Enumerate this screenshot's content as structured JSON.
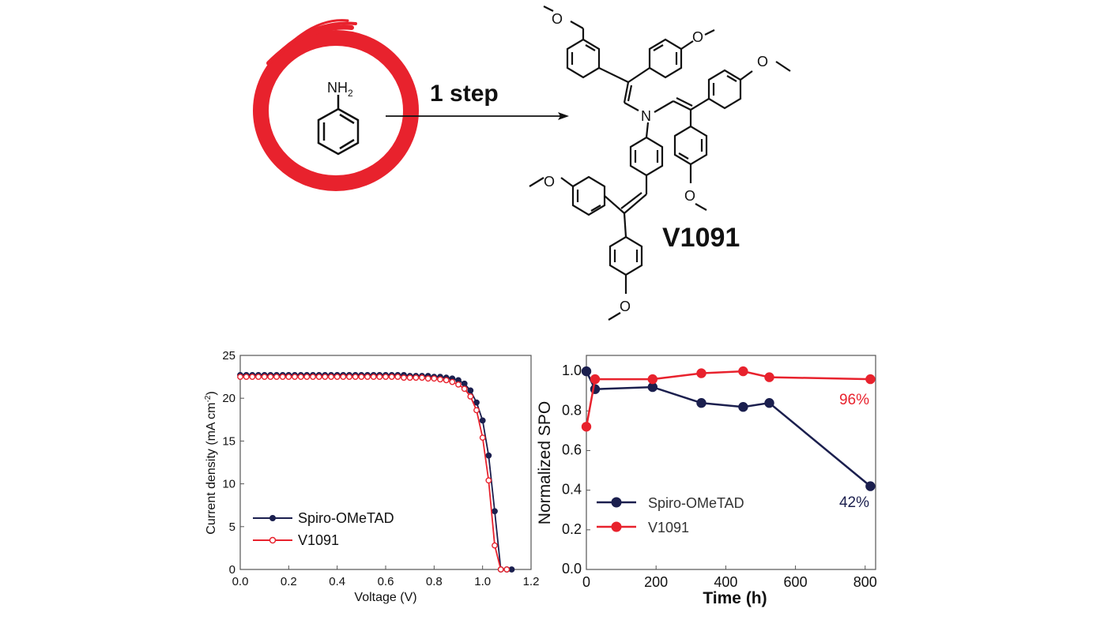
{
  "scheme": {
    "reactant_label": "NH",
    "reactant_subscript": "2",
    "step_label": "1 step",
    "product_name": "V1091",
    "atom_n": "N",
    "atom_o": "O",
    "colors": {
      "circle": "#e8222d",
      "ink": "#111111"
    }
  },
  "chart_data": [
    {
      "type": "line",
      "xlabel": "Voltage (V)",
      "ylabel": "Current density (mA cm",
      "ylabel_superscript": "-2",
      "ylabel_close": ")",
      "xlim": [
        0.0,
        1.2
      ],
      "ylim": [
        0,
        25
      ],
      "xticks": [
        "0.0",
        "0.2",
        "0.4",
        "0.6",
        "0.8",
        "1.0",
        "1.2"
      ],
      "yticks": [
        "0",
        "5",
        "10",
        "15",
        "20",
        "25"
      ],
      "legend": "lower-left",
      "series": [
        {
          "name": "Spiro-OMeTAD",
          "color": "#1b1f4e",
          "x": [
            0.0,
            0.025,
            0.05,
            0.075,
            0.1,
            0.125,
            0.15,
            0.175,
            0.2,
            0.225,
            0.25,
            0.275,
            0.3,
            0.325,
            0.35,
            0.375,
            0.4,
            0.425,
            0.45,
            0.475,
            0.5,
            0.525,
            0.55,
            0.575,
            0.6,
            0.625,
            0.65,
            0.675,
            0.7,
            0.725,
            0.75,
            0.775,
            0.8,
            0.825,
            0.85,
            0.875,
            0.9,
            0.925,
            0.95,
            0.975,
            1.0,
            1.025,
            1.05,
            1.075,
            1.1,
            1.12
          ],
          "y": [
            22.7,
            22.7,
            22.7,
            22.7,
            22.7,
            22.7,
            22.7,
            22.7,
            22.7,
            22.7,
            22.7,
            22.7,
            22.7,
            22.7,
            22.7,
            22.7,
            22.7,
            22.7,
            22.7,
            22.7,
            22.7,
            22.7,
            22.7,
            22.7,
            22.7,
            22.7,
            22.7,
            22.7,
            22.6,
            22.6,
            22.6,
            22.6,
            22.5,
            22.5,
            22.4,
            22.3,
            22.1,
            21.7,
            20.9,
            19.5,
            17.4,
            13.3,
            6.8,
            0.0,
            0.0,
            0.0
          ]
        },
        {
          "name": "V1091",
          "color": "#e8222d",
          "x": [
            0.0,
            0.025,
            0.05,
            0.075,
            0.1,
            0.125,
            0.15,
            0.175,
            0.2,
            0.225,
            0.25,
            0.275,
            0.3,
            0.325,
            0.35,
            0.375,
            0.4,
            0.425,
            0.45,
            0.475,
            0.5,
            0.525,
            0.55,
            0.575,
            0.6,
            0.625,
            0.65,
            0.675,
            0.7,
            0.725,
            0.75,
            0.775,
            0.8,
            0.825,
            0.85,
            0.875,
            0.9,
            0.925,
            0.95,
            0.975,
            1.0,
            1.025,
            1.05,
            1.075,
            1.1
          ],
          "y": [
            22.5,
            22.5,
            22.5,
            22.5,
            22.5,
            22.5,
            22.5,
            22.5,
            22.5,
            22.5,
            22.5,
            22.5,
            22.5,
            22.5,
            22.5,
            22.5,
            22.5,
            22.5,
            22.5,
            22.5,
            22.5,
            22.5,
            22.5,
            22.5,
            22.5,
            22.5,
            22.5,
            22.4,
            22.4,
            22.4,
            22.4,
            22.3,
            22.3,
            22.2,
            22.1,
            21.9,
            21.6,
            21.1,
            20.2,
            18.6,
            15.4,
            10.4,
            2.8,
            0.0,
            0.0
          ]
        }
      ]
    },
    {
      "type": "line",
      "xlabel": "Time (h)",
      "ylabel": "Normalized SPO",
      "xlim": [
        0,
        830
      ],
      "ylim": [
        0.0,
        1.08
      ],
      "xticks": [
        "0",
        "200",
        "400",
        "600",
        "800"
      ],
      "yticks": [
        "0.0",
        "0.2",
        "0.4",
        "0.6",
        "0.8",
        "1.0"
      ],
      "legend": "lower-left",
      "annotations": [
        {
          "text": "96%",
          "color": "#e8222d",
          "x": 800,
          "y": 0.89
        },
        {
          "text": "42%",
          "color": "#1b1f4e",
          "x": 800,
          "y": 0.32
        }
      ],
      "series": [
        {
          "name": "Spiro-OMeTAD",
          "color": "#1b1f4e",
          "x": [
            0,
            25,
            190,
            330,
            450,
            525,
            815
          ],
          "y": [
            1.0,
            0.91,
            0.92,
            0.84,
            0.82,
            0.84,
            0.42
          ]
        },
        {
          "name": "V1091",
          "color": "#e8222d",
          "x": [
            0,
            25,
            190,
            330,
            450,
            525,
            815
          ],
          "y": [
            0.72,
            0.96,
            0.96,
            0.99,
            1.0,
            0.97,
            0.96
          ]
        }
      ]
    }
  ]
}
